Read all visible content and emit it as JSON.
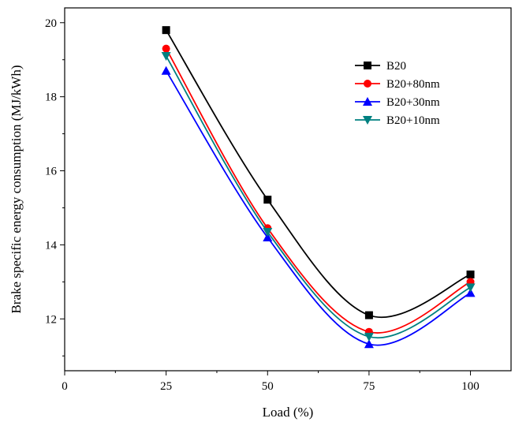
{
  "chart_data": {
    "type": "line",
    "title": "",
    "xlabel": "Load (%)",
    "ylabel": "Brake specific energy consumption (MJ/kWh)",
    "xlim": [
      0,
      110
    ],
    "ylim": [
      10.6,
      20.4
    ],
    "x_ticks": [
      0,
      25,
      50,
      75,
      100
    ],
    "y_ticks": [
      12,
      14,
      16,
      18,
      20
    ],
    "x_minor_ticks": [
      12.5,
      37.5,
      62.5,
      87.5
    ],
    "y_minor_ticks": [
      11,
      13,
      15,
      17,
      19
    ],
    "x": [
      25,
      50,
      75,
      100
    ],
    "legend_position": "top-right",
    "grid": false,
    "smooth": true,
    "series": [
      {
        "name": "B20",
        "values": [
          19.8,
          15.22,
          12.1,
          13.2
        ],
        "color": "#000000",
        "marker": "square"
      },
      {
        "name": "B20+80nm",
        "values": [
          19.3,
          14.45,
          11.65,
          13.0
        ],
        "color": "#ff0000",
        "marker": "circle"
      },
      {
        "name": "B20+30nm",
        "values": [
          18.7,
          14.2,
          11.32,
          12.7
        ],
        "color": "#0000ff",
        "marker": "triangle-up"
      },
      {
        "name": "B20+10nm",
        "values": [
          19.1,
          14.35,
          11.52,
          12.85
        ],
        "color": "#008080",
        "marker": "triangle-down"
      }
    ]
  }
}
